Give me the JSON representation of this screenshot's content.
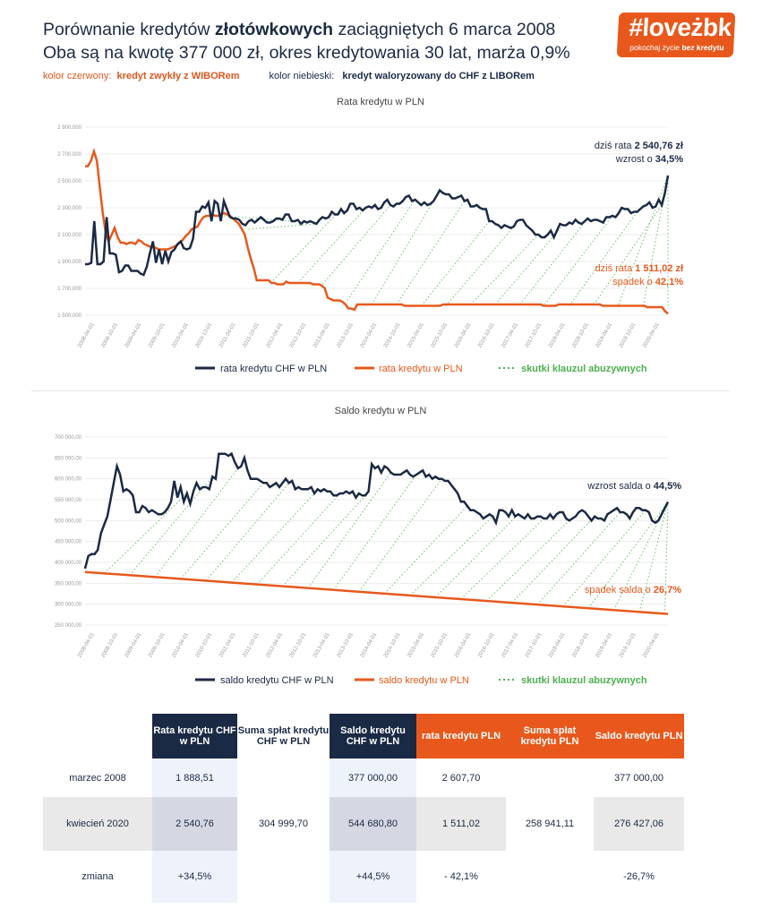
{
  "header": {
    "line1_pre": "Porównanie kredytów ",
    "line1_bold": "złotówkowych",
    "line1_post": " zaciągniętych 6 marca 2008",
    "line2": "Oba są na kwotę 377 000 zł, okres kredytowania 30 lat, marża 0,9%",
    "legend_red_key": "kolor czerwony:",
    "legend_red_val": "kredyt zwykły z WIBORem",
    "legend_blue_key": "kolor niebieski:",
    "legend_blue_val": "kredyt waloryzowany do CHF z LIBORem"
  },
  "logo": {
    "text": "#loveżbk",
    "sub_pre": "pokochaj życie ",
    "sub_bold": "bez kredytu"
  },
  "colors": {
    "navy": "#1b2a44",
    "orange": "#e8581c",
    "green": "#4caf50"
  },
  "chart_data": [
    {
      "type": "line",
      "title": "Rata kredytu w PLN",
      "x_ticks": [
        "2008-04-01",
        "2008-10-01",
        "2009-04-01",
        "2009-10-01",
        "2010-04-01",
        "2010-10-01",
        "2011-04-01",
        "2011-10-01",
        "2012-04-01",
        "2012-10-01",
        "2013-04-01",
        "2013-10-01",
        "2014-04-01",
        "2014-10-01",
        "2015-04-01",
        "2015-10-01",
        "2016-04-01",
        "2016-10-01",
        "2017-04-01",
        "2017-10-01",
        "2018-04-01",
        "2018-10-01",
        "2019-04-01",
        "2019-10-01",
        "2020-04-01"
      ],
      "y_ticks": [
        "2 900,000",
        "2 700,000",
        "2 500,000",
        "2 300,000",
        "2 100,000",
        "1 900,000",
        "1 700,000",
        "1 500,000"
      ],
      "ylim": [
        1500,
        2900
      ],
      "series": [
        {
          "name": "rata kredytu CHF w PLN",
          "color": "#1b2a44",
          "values": [
            1880,
            1880,
            1890,
            2200,
            1880,
            1880,
            1900,
            2230,
            1960,
            1960,
            1950,
            1820,
            1830,
            1870,
            1870,
            1830,
            1830,
            1830,
            1810,
            1800,
            1860,
            1960,
            2050,
            1890,
            1990,
            1880,
            1980,
            1900,
            1970,
            1990,
            2030,
            2050,
            2000,
            1990,
            2000,
            2070,
            2270,
            2270,
            2310,
            2300,
            2340,
            2200,
            2350,
            2330,
            2200,
            2350,
            2290,
            2230,
            2220,
            2220,
            2210,
            2180,
            2170,
            2200,
            2210,
            2190,
            2210,
            2230,
            2210,
            2190,
            2190,
            2200,
            2220,
            2220,
            2210,
            2250,
            2250,
            2200,
            2200,
            2210,
            2180,
            2200,
            2190,
            2200,
            2190,
            2180,
            2210,
            2230,
            2220,
            2230,
            2270,
            2250,
            2250,
            2290,
            2260,
            2280,
            2330,
            2330,
            2290,
            2300,
            2280,
            2300,
            2310,
            2300,
            2320,
            2290,
            2300,
            2340,
            2360,
            2320,
            2310,
            2330,
            2330,
            2350,
            2380,
            2390,
            2350,
            2360,
            2340,
            2320,
            2340,
            2320,
            2330,
            2350,
            2390,
            2430,
            2410,
            2400,
            2400,
            2370,
            2370,
            2380,
            2390,
            2350,
            2360,
            2310,
            2310,
            2320,
            2300,
            2290,
            2290,
            2200,
            2200,
            2180,
            2170,
            2150,
            2170,
            2160,
            2150,
            2160,
            2200,
            2210,
            2210,
            2170,
            2150,
            2130,
            2100,
            2100,
            2080,
            2080,
            2100,
            2130,
            2080,
            2130,
            2180,
            2170,
            2170,
            2190,
            2180,
            2210,
            2190,
            2180,
            2200,
            2220,
            2200,
            2210,
            2210,
            2200,
            2190,
            2230,
            2230,
            2240,
            2230,
            2260,
            2300,
            2290,
            2290,
            2260,
            2270,
            2270,
            2290,
            2310,
            2320,
            2340,
            2300,
            2310,
            2360,
            2320,
            2410,
            2540
          ]
        },
        {
          "name": "rata kredytu w PLN",
          "color": "#e8581c",
          "values": [
            2610,
            2610,
            2650,
            2720,
            2650,
            2450,
            2260,
            2110,
            2050,
            2100,
            2150,
            2080,
            2040,
            2040,
            2030,
            2040,
            2040,
            2030,
            2060,
            2050,
            2030,
            2020,
            2010,
            2010,
            2000,
            1990,
            1990,
            1990,
            1990,
            2000,
            2010,
            2020,
            2040,
            2060,
            2090,
            2110,
            2140,
            2150,
            2160,
            2200,
            2230,
            2240,
            2240,
            2250,
            2240,
            2240,
            2250,
            2260,
            2250,
            2240,
            2220,
            2200,
            2180,
            2140,
            2100,
            2000,
            1920,
            1850,
            1760,
            1760,
            1760,
            1760,
            1760,
            1740,
            1740,
            1730,
            1730,
            1730,
            1750,
            1740,
            1740,
            1740,
            1740,
            1740,
            1740,
            1740,
            1740,
            1730,
            1730,
            1730,
            1720,
            1700,
            1630,
            1620,
            1610,
            1610,
            1610,
            1600,
            1580,
            1550,
            1550,
            1540,
            1580,
            1580,
            1580,
            1580,
            1580,
            1580,
            1580,
            1580,
            1580,
            1580,
            1580,
            1580,
            1580,
            1580,
            1580,
            1580,
            1570,
            1570,
            1570,
            1570,
            1570,
            1570,
            1570,
            1570,
            1570,
            1570,
            1570,
            1570,
            1570,
            1580,
            1580,
            1580,
            1580,
            1580,
            1580,
            1580,
            1580,
            1580,
            1580,
            1580,
            1580,
            1580,
            1580,
            1580,
            1580,
            1580,
            1580,
            1580,
            1580,
            1580,
            1580,
            1580,
            1580,
            1580,
            1580,
            1580,
            1580,
            1580,
            1580,
            1580,
            1580,
            1580,
            1580,
            1570,
            1570,
            1570,
            1570,
            1570,
            1580,
            1580,
            1580,
            1580,
            1580,
            1580,
            1580,
            1580,
            1580,
            1580,
            1580,
            1580,
            1580,
            1580,
            1580,
            1570,
            1570,
            1570,
            1570,
            1570,
            1570,
            1570,
            1570,
            1570,
            1570,
            1570,
            1570,
            1570,
            1570,
            1570,
            1560,
            1560,
            1560,
            1560,
            1560,
            1560,
            1530,
            1511
          ]
        }
      ],
      "annotations": {
        "chf_line1_pre": "dziś rata ",
        "chf_line1_bold": "2 540,76 zł",
        "chf_line2_pre": "wzrost o ",
        "chf_line2_bold": "34,5%",
        "pln_line1_pre": "dziś rata ",
        "pln_line1_bold": "1 511,02 zł",
        "pln_line2_pre": "spadek o ",
        "pln_line2_bold": "42,1%"
      },
      "legend": [
        "rata kredytu CHF w PLN",
        "rata kredytu w PLN",
        "skutki klauzul abuzywnych"
      ]
    },
    {
      "type": "line",
      "title": "Saldo kredytu w PLN",
      "x_ticks": [
        "2008-04-01",
        "2008-10-01",
        "2009-04-01",
        "2009-10-01",
        "2010-04-01",
        "2010-10-01",
        "2011-04-01",
        "2011-10-01",
        "2012-04-01",
        "2012-10-01",
        "2013-04-01",
        "2013-10-01",
        "2014-04-01",
        "2014-10-01",
        "2015-04-01",
        "2015-10-01",
        "2016-04-01",
        "2016-10-01",
        "2017-04-01",
        "2017-10-01",
        "2018-04-01",
        "2018-10-01",
        "2019-04-01",
        "2019-10-01",
        "2020-04-01"
      ],
      "y_ticks": [
        "700 000,00",
        "650 000,00",
        "600 000,00",
        "550 000,00",
        "500 000,00",
        "450 000,00",
        "400 000,00",
        "350 000,00",
        "300 000,00",
        "250 000,00"
      ],
      "ylim": [
        250000,
        700000
      ],
      "series": [
        {
          "name": "saldo kredytu CHF w PLN",
          "color": "#1b2a44",
          "values": [
            385000,
            415000,
            420000,
            420000,
            430000,
            470000,
            490000,
            510000,
            550000,
            590000,
            630000,
            610000,
            570000,
            575000,
            570000,
            560000,
            520000,
            520000,
            535000,
            530000,
            520000,
            525000,
            520000,
            515000,
            515000,
            520000,
            530000,
            545000,
            595000,
            555000,
            580000,
            545000,
            565000,
            540000,
            570000,
            590000,
            575000,
            580000,
            580000,
            575000,
            605000,
            600000,
            660000,
            660000,
            660000,
            655000,
            660000,
            640000,
            625000,
            630000,
            650000,
            620000,
            600000,
            600000,
            600000,
            595000,
            590000,
            590000,
            580000,
            585000,
            590000,
            580000,
            590000,
            600000,
            590000,
            595000,
            575000,
            580000,
            575000,
            575000,
            575000,
            580000,
            565000,
            575000,
            570000,
            575000,
            570000,
            570000,
            560000,
            560000,
            565000,
            565000,
            570000,
            565000,
            570000,
            555000,
            565000,
            560000,
            560000,
            570000,
            635000,
            625000,
            630000,
            615000,
            630000,
            625000,
            615000,
            610000,
            610000,
            610000,
            615000,
            620000,
            610000,
            605000,
            610000,
            615000,
            620000,
            605000,
            610000,
            600000,
            605000,
            600000,
            600000,
            595000,
            595000,
            585000,
            575000,
            565000,
            545000,
            545000,
            535000,
            525000,
            525000,
            520000,
            515000,
            505000,
            510000,
            515000,
            510000,
            495000,
            525000,
            525000,
            520000,
            510000,
            525000,
            510000,
            515000,
            510000,
            505000,
            515000,
            505000,
            505000,
            510000,
            510000,
            505000,
            505000,
            515000,
            505000,
            515000,
            520000,
            520000,
            505000,
            500000,
            505000,
            510000,
            520000,
            525000,
            520000,
            510000,
            500000,
            510000,
            505000,
            505000,
            500000,
            515000,
            520000,
            525000,
            530000,
            520000,
            520000,
            515000,
            505000,
            520000,
            530000,
            530000,
            525000,
            525000,
            520000,
            500000,
            495000,
            500000,
            515000,
            530000,
            544681
          ]
        },
        {
          "name": "saldo kredytu w PLN",
          "color": "#e8581c",
          "values": [
            377000,
            276427
          ]
        }
      ],
      "annotations": {
        "chf_pre": "wzrost salda o ",
        "chf_bold": "44,5%",
        "pln_pre": "spadek salda o ",
        "pln_bold": "26,7%"
      },
      "legend": [
        "saldo kredytu CHF w PLN",
        "saldo kredytu w PLN",
        "skutki klauzul abuzywnych"
      ]
    }
  ],
  "table": {
    "headers": [
      "Rata kredytu CHF w PLN",
      "Suma spłat kredytu CHF w PLN",
      "Saldo kredytu CHF w PLN",
      "rata kredytu PLN",
      "Suma spłat kredytu PLN",
      "Saldo kredytu PLN"
    ],
    "rows": [
      {
        "label": "marzec 2008",
        "cells": [
          "1 888,51",
          "",
          "377 000,00",
          "2 607,70",
          "",
          "377 000,00"
        ]
      },
      {
        "label": "kwiecień 2020",
        "cells": [
          "2 540,76",
          "304 999,70",
          "544 680,80",
          "1 511,02",
          "258 941,11",
          "276 427,06"
        ]
      },
      {
        "label": "zmiana",
        "cells": [
          "+34,5%",
          "",
          "+44,5%",
          "- 42,1%",
          "",
          "-26,7%"
        ]
      }
    ]
  }
}
